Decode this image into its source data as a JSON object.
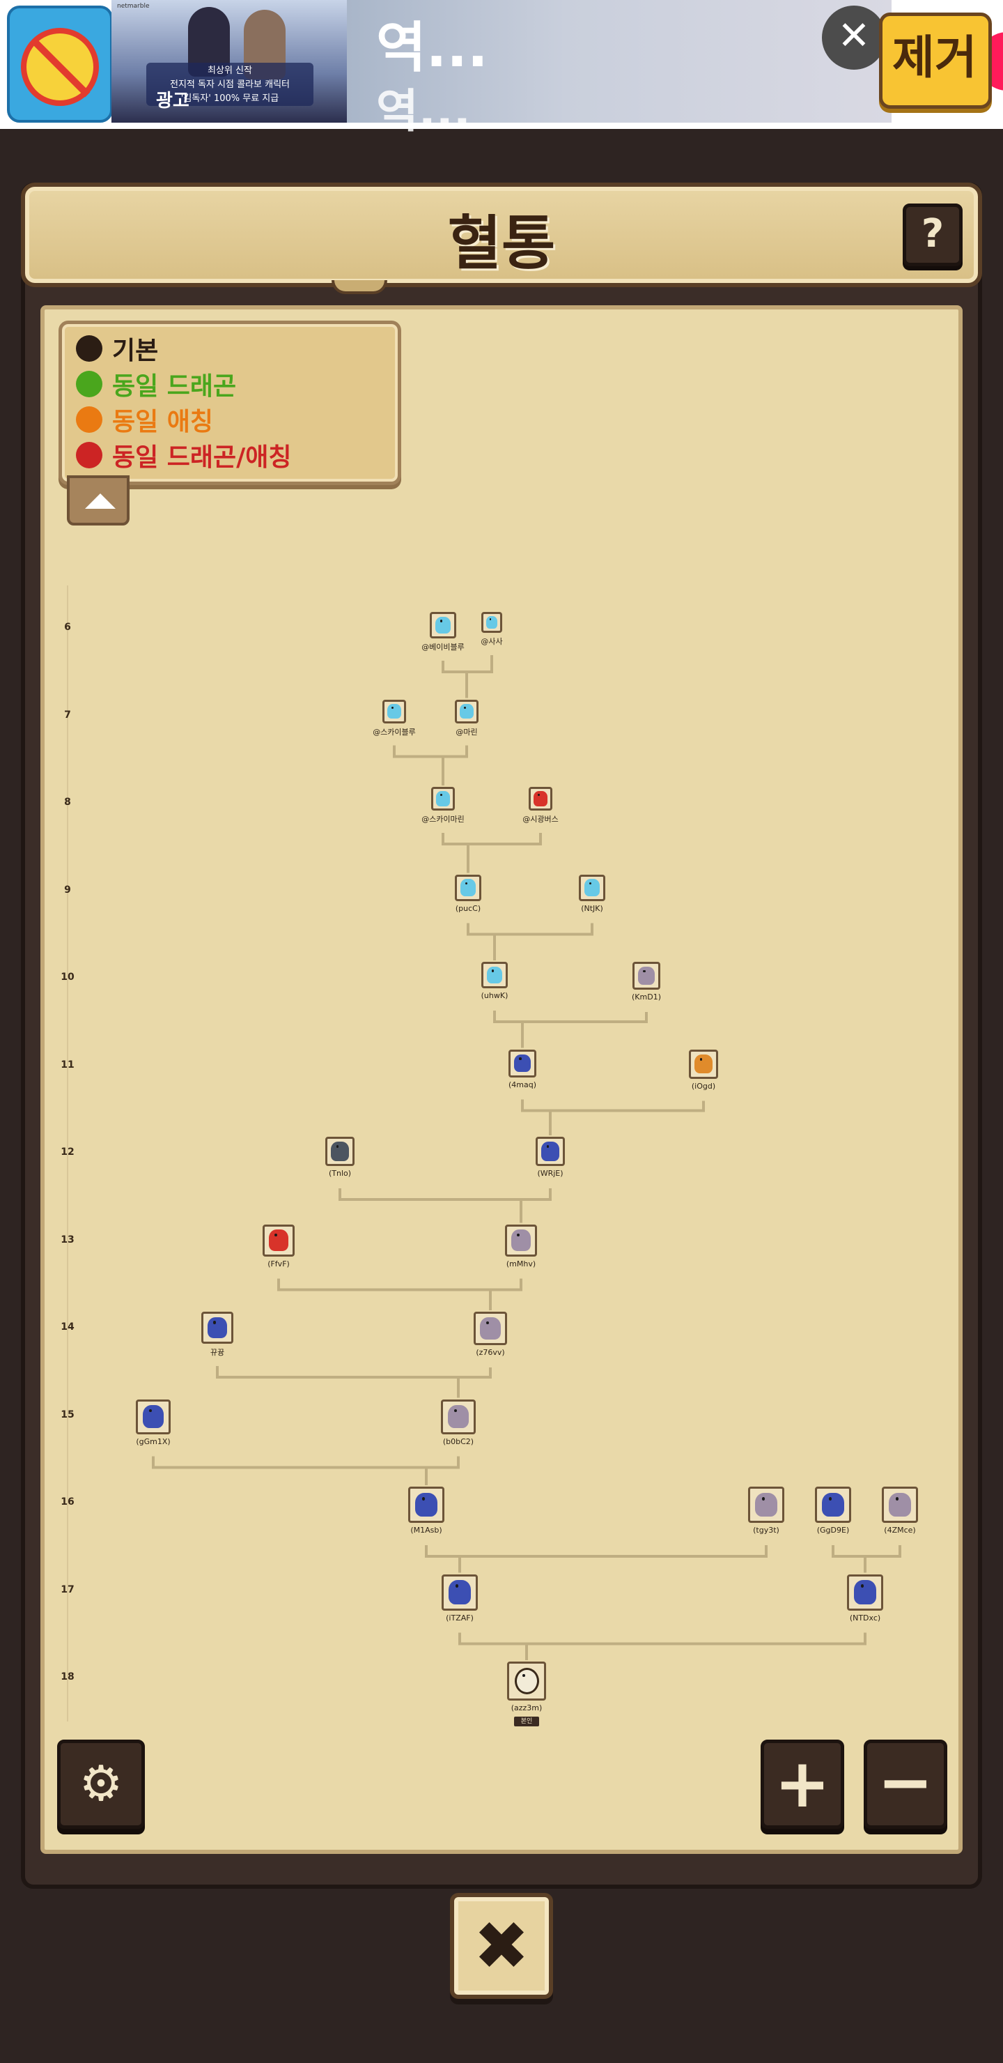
{
  "ad": {
    "small_top": "netmarble",
    "banner_caption_1": "최상위 신작",
    "banner_caption_2": "전지적 독자 시점 콜라보 캐릭터",
    "banner_caption_3": "'김독자' 100% 무료 지급",
    "banner_label": "광고",
    "headline": "역...",
    "subline": "역...",
    "arrow": "›",
    "close": "✕",
    "remove_ads_label": "제거"
  },
  "header": {
    "title": "혈통",
    "help_label": "?"
  },
  "legend": {
    "items": [
      {
        "label": "기본",
        "color": "#2b1d14"
      },
      {
        "label": "동일 드래곤",
        "color": "#4aa61d"
      },
      {
        "label": "동일 애칭",
        "color": "#ea7a12"
      },
      {
        "label": "동일 드래곤/애칭",
        "color": "#cc2424"
      }
    ]
  },
  "generations": [
    "6",
    "7",
    "8",
    "9",
    "10",
    "11",
    "12",
    "13",
    "14",
    "15",
    "16",
    "17",
    "18"
  ],
  "tree": {
    "nodes": [
      {
        "id": "g6a",
        "label": "@베이비블루",
        "kind": "ice"
      },
      {
        "id": "g6b",
        "label": "@사사",
        "kind": "ice"
      },
      {
        "id": "g7a",
        "label": "@스카이블루",
        "kind": "ice"
      },
      {
        "id": "g7b",
        "label": "@마린",
        "kind": "ice"
      },
      {
        "id": "g8a",
        "label": "@스카이마린",
        "kind": "ice"
      },
      {
        "id": "g8b",
        "label": "@시광버스",
        "kind": "fire"
      },
      {
        "id": "g9a",
        "label": "(pucC)",
        "kind": "ice"
      },
      {
        "id": "g9b",
        "label": "(NtJK)",
        "kind": "ice"
      },
      {
        "id": "g10a",
        "label": "(uhwK)",
        "kind": "ice"
      },
      {
        "id": "g10b",
        "label": "(KmD1)",
        "kind": "sage"
      },
      {
        "id": "g11a",
        "label": "(4maq)",
        "kind": "knight"
      },
      {
        "id": "g11b",
        "label": "(iOgd)",
        "kind": "amber"
      },
      {
        "id": "g12a",
        "label": "(Tnlo)",
        "kind": "shadow"
      },
      {
        "id": "g12b",
        "label": "(WRjE)",
        "kind": "knight"
      },
      {
        "id": "g13a",
        "label": "(FfvF)",
        "kind": "fire"
      },
      {
        "id": "g13b",
        "label": "(mMhv)",
        "kind": "sage"
      },
      {
        "id": "g14a",
        "label": "뀨뀽",
        "kind": "knight"
      },
      {
        "id": "g14b",
        "label": "(z76vv)",
        "kind": "sage"
      },
      {
        "id": "g15a",
        "label": "(gGm1X)",
        "kind": "knight"
      },
      {
        "id": "g15b",
        "label": "(b0bC2)",
        "kind": "sage"
      },
      {
        "id": "g16a",
        "label": "(M1Asb)",
        "kind": "knight"
      },
      {
        "id": "g16b",
        "label": "(tgy3t)",
        "kind": "sage"
      },
      {
        "id": "g16c",
        "label": "(GgD9E)",
        "kind": "knight"
      },
      {
        "id": "g16d",
        "label": "(4ZMce)",
        "kind": "sage"
      },
      {
        "id": "g17a",
        "label": "(iTZAF)",
        "kind": "knight"
      },
      {
        "id": "g17b",
        "label": "(NTDxc)",
        "kind": "knight"
      },
      {
        "id": "g18a",
        "label": "(azz3m)",
        "kind": "egg",
        "badge": "본인"
      }
    ],
    "links": [
      [
        "g6a",
        "g6b",
        "g7b"
      ],
      [
        "g7a",
        "g7b",
        "g8a"
      ],
      [
        "g8a",
        "g8b",
        "g9a"
      ],
      [
        "g9a",
        "g9b",
        "g10a"
      ],
      [
        "g10a",
        "g10b",
        "g11a"
      ],
      [
        "g11a",
        "g11b",
        "g12b"
      ],
      [
        "g12a",
        "g12b",
        "g13b"
      ],
      [
        "g13a",
        "g13b",
        "g14b"
      ],
      [
        "g14a",
        "g14b",
        "g15b"
      ],
      [
        "g15a",
        "g15b",
        "g16a"
      ],
      [
        "g16a",
        "g16b",
        "g17a"
      ],
      [
        "g16c",
        "g16d",
        "g17b"
      ],
      [
        "g17a",
        "g17b",
        "g18a"
      ]
    ],
    "colors": {
      "ice": "#67c9e6",
      "fire": "#d8332a",
      "sage": "#9f8fa6",
      "knight": "#3c4fb3",
      "amber": "#e08b2b",
      "shadow": "#4c5560",
      "egg": "#f2ecd8",
      "line": "#bfae82"
    }
  },
  "controls": {
    "settings_icon": "⚙",
    "zoom_in": "+",
    "zoom_out": "−",
    "close": "✖"
  }
}
